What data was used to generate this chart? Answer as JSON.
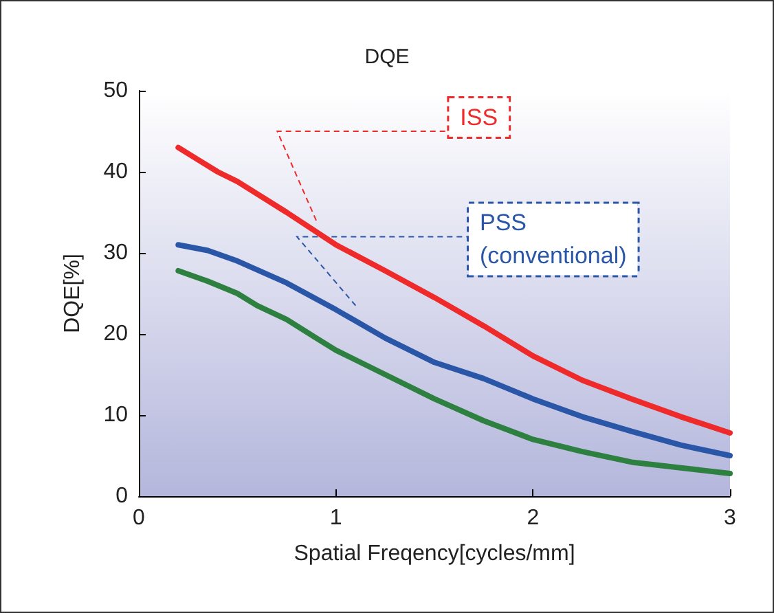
{
  "chart_data": {
    "type": "line",
    "title": "DQE",
    "xlabel": "Spatial Freqency[cycles/mm]",
    "ylabel": "DQE[%]",
    "xlim": [
      0,
      3
    ],
    "xticks": [
      0,
      1,
      2,
      3
    ],
    "ylim": [
      0,
      50
    ],
    "yticks": [
      0,
      10,
      20,
      30,
      40,
      50
    ],
    "grid": false,
    "legend": false,
    "marker": "none",
    "line_style": "solid",
    "series": [
      {
        "name": "ISS",
        "color": "#ee2a2a",
        "x": [
          0.2,
          0.3,
          0.4,
          0.5,
          0.75,
          1,
          1.25,
          1.5,
          1.75,
          2,
          2.25,
          2.5,
          2.75,
          3
        ],
        "values": [
          43,
          41.5,
          40,
          38.8,
          35,
          31,
          27.8,
          24.5,
          21,
          17.3,
          14.3,
          12,
          9.8,
          7.8
        ]
      },
      {
        "name": "PSS (conventional)",
        "color": "#2a56a8",
        "x": [
          0.2,
          0.35,
          0.5,
          0.75,
          1,
          1.25,
          1.5,
          1.75,
          2,
          2.25,
          2.5,
          2.75,
          3
        ],
        "values": [
          31,
          30.3,
          29,
          26.3,
          23,
          19.5,
          16.5,
          14.5,
          12,
          9.8,
          8,
          6.3,
          5
        ]
      },
      {
        "color": "#2e8040",
        "x": [
          0.2,
          0.35,
          0.5,
          0.6,
          0.75,
          0.9,
          1,
          1.25,
          1.5,
          1.75,
          2,
          2.25,
          2.5,
          2.75,
          3
        ],
        "values": [
          27.8,
          26.5,
          25,
          23.5,
          21.8,
          19.5,
          18,
          15,
          12,
          9.3,
          7,
          5.5,
          4.2,
          3.5,
          2.8
        ]
      }
    ]
  }
}
